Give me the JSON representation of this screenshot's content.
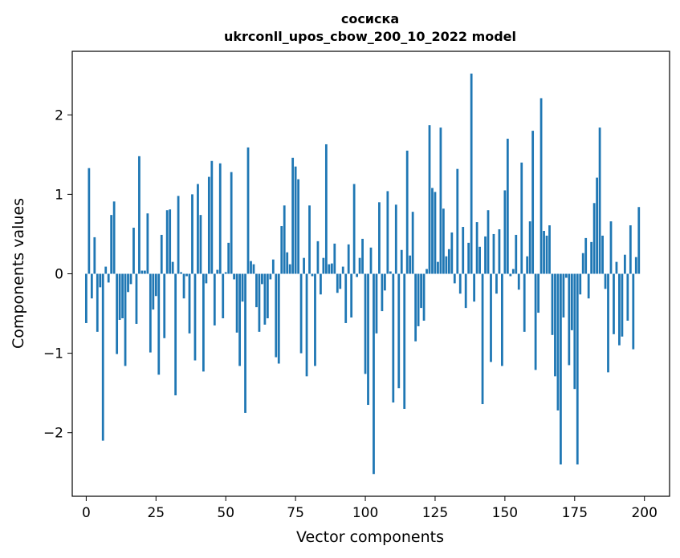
{
  "chart_data": {
    "type": "bar",
    "title": [
      "сосиска",
      "ukrconll_upos_cbow_200_10_2022 model"
    ],
    "xlabel": "Vector components",
    "ylabel": "Components values",
    "xlim": [
      -5,
      209
    ],
    "ylim": [
      -2.8,
      2.8
    ],
    "xticks": [
      0,
      25,
      50,
      75,
      100,
      125,
      150,
      175,
      200
    ],
    "xtick_labels": [
      "0",
      "25",
      "50",
      "75",
      "100",
      "125",
      "150",
      "175",
      "200"
    ],
    "yticks": [
      -2,
      -1,
      0,
      1,
      2
    ],
    "ytick_labels": [
      "−2",
      "−1",
      "0",
      "1",
      "2"
    ],
    "grid": false,
    "color": "#1f77b4",
    "values": [
      -0.62,
      1.33,
      -0.31,
      0.46,
      -0.73,
      -0.17,
      -2.1,
      0.09,
      -0.11,
      0.74,
      0.91,
      -1.01,
      -0.58,
      -0.56,
      -1.16,
      -0.23,
      -0.13,
      0.58,
      -0.63,
      1.48,
      0.04,
      0.04,
      0.76,
      -0.99,
      -0.45,
      -0.28,
      -1.27,
      0.49,
      -0.81,
      0.8,
      0.81,
      0.15,
      -1.53,
      0.98,
      0.02,
      -0.31,
      -0.03,
      -0.75,
      1.0,
      -1.09,
      1.13,
      0.74,
      -1.23,
      -0.12,
      1.22,
      1.42,
      -0.65,
      0.05,
      1.39,
      -0.56,
      0.02,
      0.39,
      1.28,
      -0.07,
      -0.74,
      -1.16,
      -0.35,
      -1.75,
      1.59,
      0.16,
      0.12,
      -0.42,
      -0.73,
      -0.13,
      -0.64,
      -0.56,
      -0.07,
      0.18,
      -1.05,
      -1.13,
      0.6,
      0.86,
      0.27,
      0.12,
      1.46,
      1.35,
      1.19,
      -1.0,
      0.2,
      -1.29,
      0.86,
      -0.03,
      -1.16,
      0.41,
      -0.26,
      0.2,
      1.63,
      0.12,
      0.13,
      0.38,
      -0.24,
      -0.19,
      0.09,
      -0.62,
      0.37,
      -0.55,
      1.13,
      -0.04,
      0.2,
      0.44,
      -1.26,
      -1.65,
      0.33,
      -2.52,
      -0.75,
      0.9,
      -0.47,
      -0.21,
      1.04,
      0.03,
      -1.62,
      0.87,
      -1.44,
      0.3,
      -1.7,
      1.55,
      0.23,
      0.78,
      -0.85,
      -0.66,
      -0.43,
      -0.59,
      0.06,
      1.87,
      1.08,
      1.03,
      0.15,
      1.84,
      0.82,
      0.22,
      0.31,
      0.52,
      -0.12,
      1.32,
      -0.25,
      0.59,
      -0.43,
      0.39,
      2.52,
      -0.35,
      0.65,
      0.34,
      -1.64,
      0.47,
      0.8,
      -1.11,
      0.5,
      -0.25,
      0.56,
      -1.16,
      1.05,
      1.7,
      -0.03,
      0.06,
      0.49,
      -0.2,
      1.4,
      -0.73,
      0.22,
      0.66,
      1.8,
      -1.21,
      -0.49,
      2.21,
      0.54,
      0.48,
      0.61,
      -0.77,
      -1.29,
      -1.72,
      -2.4,
      -0.55,
      -0.05,
      -1.15,
      -0.71,
      -1.45,
      -2.4,
      -0.26,
      0.26,
      0.45,
      -0.31,
      0.4,
      0.89,
      1.21,
      1.84,
      0.48,
      -0.19,
      -1.24,
      0.66,
      -0.76,
      0.15,
      -0.9,
      -0.79,
      0.24,
      -0.59,
      0.61,
      -0.95,
      0.21,
      0.84
    ]
  }
}
